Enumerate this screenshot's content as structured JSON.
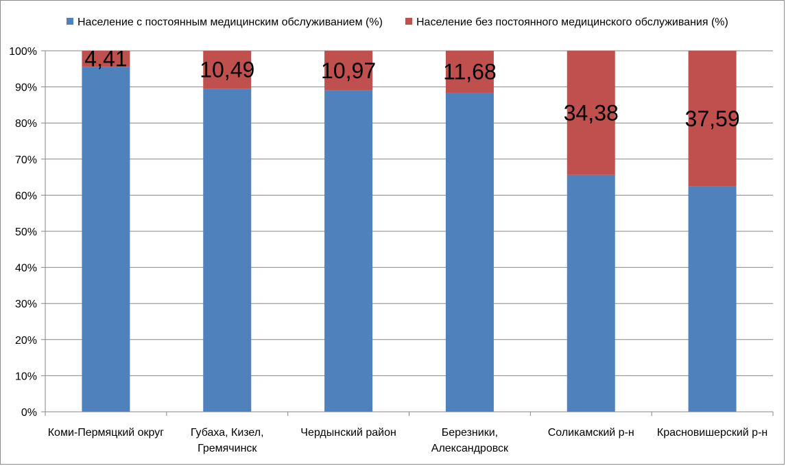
{
  "chart_data": {
    "type": "bar",
    "stacked": true,
    "percent_stacked": true,
    "categories": [
      [
        "Коми-Пермяцкий округ"
      ],
      [
        "Губаха, Кизел,",
        "Гремячинск"
      ],
      [
        "Чердынский район"
      ],
      [
        "Березники,",
        "Александровск"
      ],
      [
        "Соликамский р-н"
      ],
      [
        "Красновишерский р-н"
      ]
    ],
    "series": [
      {
        "name": "Население с постоянным медицинским обслуживанием (%)",
        "color": "#4f81bd",
        "values": [
          95.59,
          89.51,
          89.03,
          88.32,
          65.62,
          62.41
        ]
      },
      {
        "name": "Население без постоянного медицинского обслуживания (%)",
        "color": "#c0504d",
        "values": [
          4.41,
          10.49,
          10.97,
          11.68,
          34.38,
          37.59
        ],
        "data_labels": [
          "4,41",
          "10,49",
          "10,97",
          "11,68",
          "34,38",
          "37,59"
        ]
      }
    ],
    "y_ticks": [
      "0%",
      "10%",
      "20%",
      "30%",
      "40%",
      "50%",
      "60%",
      "70%",
      "80%",
      "90%",
      "100%"
    ],
    "ylim": [
      0,
      100
    ],
    "grid": true,
    "legend_position": "top"
  }
}
